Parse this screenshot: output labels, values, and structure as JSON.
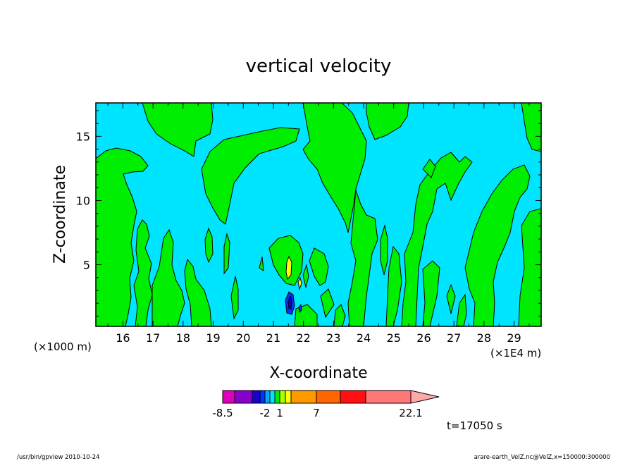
{
  "chart_data": {
    "type": "heatmap",
    "title": "vertical velocity",
    "xlabel": "X-coordinate",
    "ylabel": "Z-coordinate",
    "x_unit_left": "(×1000 m)",
    "x_unit_right": "(×1E4 m)",
    "xlim": [
      15.1,
      29.9
    ],
    "ylim": [
      0.2,
      17.6
    ],
    "xticks": [
      "16",
      "17",
      "18",
      "19",
      "20",
      "21",
      "22",
      "23",
      "24",
      "25",
      "26",
      "27",
      "28",
      "29"
    ],
    "yticks": [
      "5",
      "10",
      "15"
    ],
    "colors": {
      "background": "#00e5ff",
      "positive": "#00ee00",
      "yellow": "#ffff00",
      "blue": "#0033ff",
      "deep_blue": "#1a00cc"
    },
    "colorbar": {
      "labels": [
        "-8.5",
        "-2",
        "1",
        "7",
        "22.1"
      ],
      "bins": [
        {
          "from": -8.5,
          "to": -6.5,
          "color": "#dd00bb"
        },
        {
          "from": -6.5,
          "to": -4.0,
          "color": "#8800cc"
        },
        {
          "from": -4.0,
          "to": -3.0,
          "color": "#1a00cc"
        },
        {
          "from": -3.0,
          "to": -2.0,
          "color": "#0033ff"
        },
        {
          "from": -2.0,
          "to": -1.0,
          "color": "#00aaff"
        },
        {
          "from": -1.0,
          "to": 0.0,
          "color": "#00e5ff"
        },
        {
          "from": 0.0,
          "to": 1.0,
          "color": "#00ee00"
        },
        {
          "from": 1.0,
          "to": 2.0,
          "color": "#aaff00"
        },
        {
          "from": 2.0,
          "to": 3.0,
          "color": "#ffff00"
        },
        {
          "from": 3.0,
          "to": 7.0,
          "color": "#ff9900"
        },
        {
          "from": 7.0,
          "to": 11.0,
          "color": "#ff6600"
        },
        {
          "from": 11.0,
          "to": 15.0,
          "color": "#ff1111"
        },
        {
          "from": 15.0,
          "to": 22.1,
          "color": "#ff7777"
        },
        {
          "from": 22.1,
          "to": null,
          "color": "#ffaaaa"
        }
      ]
    },
    "time_label": "t=17050 s",
    "grid": false
  },
  "footer": {
    "left": "/usr/bin/gpview   2010-10-24",
    "right": "arare-earth_VelZ.nc@VelZ,x=150000:300000"
  }
}
